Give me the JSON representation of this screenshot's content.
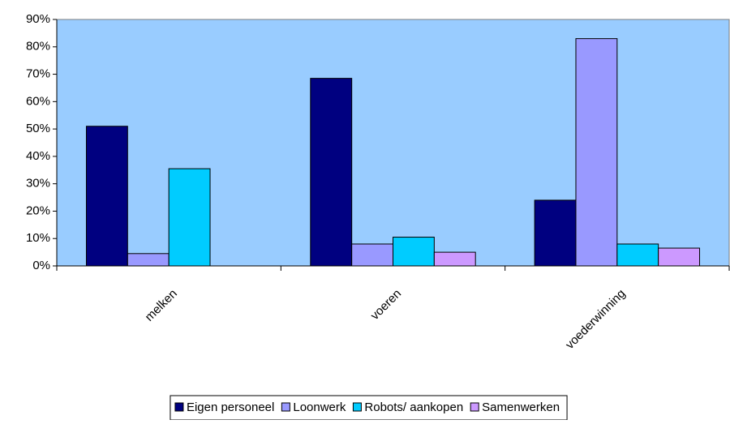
{
  "chart_data": {
    "type": "bar",
    "categories": [
      "melken",
      "voeren",
      "voederwinning"
    ],
    "series": [
      {
        "name": "Eigen personeel",
        "color": "#000080",
        "values": [
          51,
          68.5,
          24
        ]
      },
      {
        "name": "Loonwerk",
        "color": "#9999ff",
        "values": [
          4.5,
          8,
          83
        ]
      },
      {
        "name": "Robots/ aankopen",
        "color": "#00ccff",
        "values": [
          35.5,
          10.5,
          8
        ]
      },
      {
        "name": "Samenwerken",
        "color": "#cc99ff",
        "values": [
          0,
          5,
          6.5
        ]
      }
    ],
    "ylim": [
      0,
      90
    ],
    "yticks": [
      {
        "value": 0,
        "label": "0%"
      },
      {
        "value": 10,
        "label": "10%"
      },
      {
        "value": 20,
        "label": "20%"
      },
      {
        "value": 30,
        "label": "30%"
      },
      {
        "value": 40,
        "label": "40%"
      },
      {
        "value": 50,
        "label": "50%"
      },
      {
        "value": 60,
        "label": "60%"
      },
      {
        "value": 70,
        "label": "70%"
      },
      {
        "value": 80,
        "label": "80%"
      },
      {
        "value": 90,
        "label": "90%"
      }
    ],
    "plot_background": "#99ccff",
    "legend": "bottom"
  }
}
